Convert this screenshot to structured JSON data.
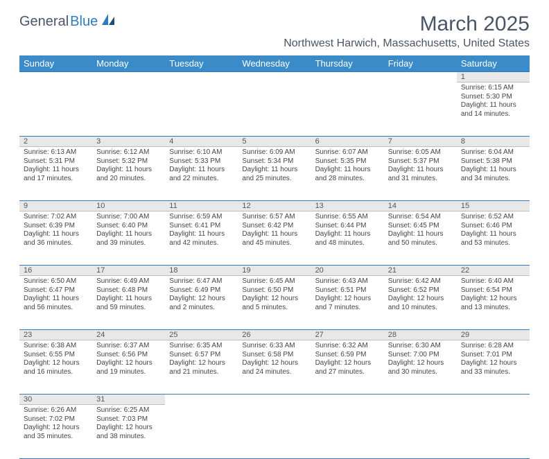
{
  "logo": {
    "part1": "General",
    "part2": "Blue"
  },
  "title": "March 2025",
  "location": "Northwest Harwich, Massachusetts, United States",
  "dayHeaders": [
    "Sunday",
    "Monday",
    "Tuesday",
    "Wednesday",
    "Thursday",
    "Friday",
    "Saturday"
  ],
  "colors": {
    "headerBg": "#3b8bc9",
    "headerText": "#ffffff",
    "dayNumBg": "#e8e8e8",
    "borderBlue": "#2f7bbf",
    "textGray": "#4a5568"
  },
  "weeks": [
    [
      null,
      null,
      null,
      null,
      null,
      null,
      {
        "n": "1",
        "sunrise": "Sunrise: 6:15 AM",
        "sunset": "Sunset: 5:30 PM",
        "daylight1": "Daylight: 11 hours",
        "daylight2": "and 14 minutes."
      }
    ],
    [
      {
        "n": "2",
        "sunrise": "Sunrise: 6:13 AM",
        "sunset": "Sunset: 5:31 PM",
        "daylight1": "Daylight: 11 hours",
        "daylight2": "and 17 minutes."
      },
      {
        "n": "3",
        "sunrise": "Sunrise: 6:12 AM",
        "sunset": "Sunset: 5:32 PM",
        "daylight1": "Daylight: 11 hours",
        "daylight2": "and 20 minutes."
      },
      {
        "n": "4",
        "sunrise": "Sunrise: 6:10 AM",
        "sunset": "Sunset: 5:33 PM",
        "daylight1": "Daylight: 11 hours",
        "daylight2": "and 22 minutes."
      },
      {
        "n": "5",
        "sunrise": "Sunrise: 6:09 AM",
        "sunset": "Sunset: 5:34 PM",
        "daylight1": "Daylight: 11 hours",
        "daylight2": "and 25 minutes."
      },
      {
        "n": "6",
        "sunrise": "Sunrise: 6:07 AM",
        "sunset": "Sunset: 5:35 PM",
        "daylight1": "Daylight: 11 hours",
        "daylight2": "and 28 minutes."
      },
      {
        "n": "7",
        "sunrise": "Sunrise: 6:05 AM",
        "sunset": "Sunset: 5:37 PM",
        "daylight1": "Daylight: 11 hours",
        "daylight2": "and 31 minutes."
      },
      {
        "n": "8",
        "sunrise": "Sunrise: 6:04 AM",
        "sunset": "Sunset: 5:38 PM",
        "daylight1": "Daylight: 11 hours",
        "daylight2": "and 34 minutes."
      }
    ],
    [
      {
        "n": "9",
        "sunrise": "Sunrise: 7:02 AM",
        "sunset": "Sunset: 6:39 PM",
        "daylight1": "Daylight: 11 hours",
        "daylight2": "and 36 minutes."
      },
      {
        "n": "10",
        "sunrise": "Sunrise: 7:00 AM",
        "sunset": "Sunset: 6:40 PM",
        "daylight1": "Daylight: 11 hours",
        "daylight2": "and 39 minutes."
      },
      {
        "n": "11",
        "sunrise": "Sunrise: 6:59 AM",
        "sunset": "Sunset: 6:41 PM",
        "daylight1": "Daylight: 11 hours",
        "daylight2": "and 42 minutes."
      },
      {
        "n": "12",
        "sunrise": "Sunrise: 6:57 AM",
        "sunset": "Sunset: 6:42 PM",
        "daylight1": "Daylight: 11 hours",
        "daylight2": "and 45 minutes."
      },
      {
        "n": "13",
        "sunrise": "Sunrise: 6:55 AM",
        "sunset": "Sunset: 6:44 PM",
        "daylight1": "Daylight: 11 hours",
        "daylight2": "and 48 minutes."
      },
      {
        "n": "14",
        "sunrise": "Sunrise: 6:54 AM",
        "sunset": "Sunset: 6:45 PM",
        "daylight1": "Daylight: 11 hours",
        "daylight2": "and 50 minutes."
      },
      {
        "n": "15",
        "sunrise": "Sunrise: 6:52 AM",
        "sunset": "Sunset: 6:46 PM",
        "daylight1": "Daylight: 11 hours",
        "daylight2": "and 53 minutes."
      }
    ],
    [
      {
        "n": "16",
        "sunrise": "Sunrise: 6:50 AM",
        "sunset": "Sunset: 6:47 PM",
        "daylight1": "Daylight: 11 hours",
        "daylight2": "and 56 minutes."
      },
      {
        "n": "17",
        "sunrise": "Sunrise: 6:49 AM",
        "sunset": "Sunset: 6:48 PM",
        "daylight1": "Daylight: 11 hours",
        "daylight2": "and 59 minutes."
      },
      {
        "n": "18",
        "sunrise": "Sunrise: 6:47 AM",
        "sunset": "Sunset: 6:49 PM",
        "daylight1": "Daylight: 12 hours",
        "daylight2": "and 2 minutes."
      },
      {
        "n": "19",
        "sunrise": "Sunrise: 6:45 AM",
        "sunset": "Sunset: 6:50 PM",
        "daylight1": "Daylight: 12 hours",
        "daylight2": "and 5 minutes."
      },
      {
        "n": "20",
        "sunrise": "Sunrise: 6:43 AM",
        "sunset": "Sunset: 6:51 PM",
        "daylight1": "Daylight: 12 hours",
        "daylight2": "and 7 minutes."
      },
      {
        "n": "21",
        "sunrise": "Sunrise: 6:42 AM",
        "sunset": "Sunset: 6:52 PM",
        "daylight1": "Daylight: 12 hours",
        "daylight2": "and 10 minutes."
      },
      {
        "n": "22",
        "sunrise": "Sunrise: 6:40 AM",
        "sunset": "Sunset: 6:54 PM",
        "daylight1": "Daylight: 12 hours",
        "daylight2": "and 13 minutes."
      }
    ],
    [
      {
        "n": "23",
        "sunrise": "Sunrise: 6:38 AM",
        "sunset": "Sunset: 6:55 PM",
        "daylight1": "Daylight: 12 hours",
        "daylight2": "and 16 minutes."
      },
      {
        "n": "24",
        "sunrise": "Sunrise: 6:37 AM",
        "sunset": "Sunset: 6:56 PM",
        "daylight1": "Daylight: 12 hours",
        "daylight2": "and 19 minutes."
      },
      {
        "n": "25",
        "sunrise": "Sunrise: 6:35 AM",
        "sunset": "Sunset: 6:57 PM",
        "daylight1": "Daylight: 12 hours",
        "daylight2": "and 21 minutes."
      },
      {
        "n": "26",
        "sunrise": "Sunrise: 6:33 AM",
        "sunset": "Sunset: 6:58 PM",
        "daylight1": "Daylight: 12 hours",
        "daylight2": "and 24 minutes."
      },
      {
        "n": "27",
        "sunrise": "Sunrise: 6:32 AM",
        "sunset": "Sunset: 6:59 PM",
        "daylight1": "Daylight: 12 hours",
        "daylight2": "and 27 minutes."
      },
      {
        "n": "28",
        "sunrise": "Sunrise: 6:30 AM",
        "sunset": "Sunset: 7:00 PM",
        "daylight1": "Daylight: 12 hours",
        "daylight2": "and 30 minutes."
      },
      {
        "n": "29",
        "sunrise": "Sunrise: 6:28 AM",
        "sunset": "Sunset: 7:01 PM",
        "daylight1": "Daylight: 12 hours",
        "daylight2": "and 33 minutes."
      }
    ],
    [
      {
        "n": "30",
        "sunrise": "Sunrise: 6:26 AM",
        "sunset": "Sunset: 7:02 PM",
        "daylight1": "Daylight: 12 hours",
        "daylight2": "and 35 minutes."
      },
      {
        "n": "31",
        "sunrise": "Sunrise: 6:25 AM",
        "sunset": "Sunset: 7:03 PM",
        "daylight1": "Daylight: 12 hours",
        "daylight2": "and 38 minutes."
      },
      null,
      null,
      null,
      null,
      null
    ]
  ]
}
